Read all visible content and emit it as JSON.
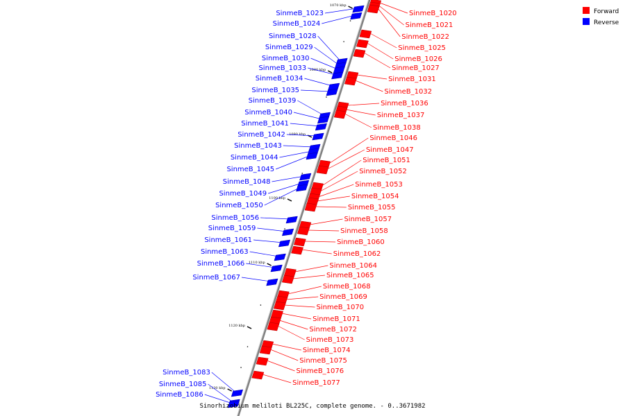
{
  "caption": "Sinorhizobium meliloti BL225C, complete genome. - 0..3671982",
  "legend": [
    {
      "label": "Forward",
      "color": "#ff0000"
    },
    {
      "label": "Reverse",
      "color": "#0000ff"
    }
  ],
  "colors": {
    "forward": "#ff0000",
    "reverse": "#0000ff",
    "backbone": "#808080"
  },
  "ticks": [
    "1070 kbp",
    "1080 kbp",
    "1090 kbp",
    "1100 kbp",
    "1110 kbp",
    "1120 kbp",
    "1130 kbp"
  ],
  "genes_reverse": [
    "SinmeB_1023",
    "SinmeB_1024",
    "SinmeB_1028",
    "SinmeB_1029",
    "SinmeB_1030",
    "SinmeB_1033",
    "SinmeB_1034",
    "SinmeB_1035",
    "SinmeB_1039",
    "SinmeB_1040",
    "SinmeB_1041",
    "SinmeB_1042",
    "SinmeB_1043",
    "SinmeB_1044",
    "SinmeB_1045",
    "SinmeB_1048",
    "SinmeB_1049",
    "SinmeB_1050",
    "SinmeB_1056",
    "SinmeB_1059",
    "SinmeB_1061",
    "SinmeB_1063",
    "SinmeB_1066",
    "SinmeB_1067",
    "SinmeB_1083",
    "SinmeB_1085",
    "SinmeB_1086"
  ],
  "genes_forward": [
    "SinmeB_1020",
    "SinmeB_1021",
    "SinmeB_1022",
    "SinmeB_1025",
    "SinmeB_1026",
    "SinmeB_1027",
    "SinmeB_1031",
    "SinmeB_1032",
    "SinmeB_1036",
    "SinmeB_1037",
    "SinmeB_1038",
    "SinmeB_1046",
    "SinmeB_1047",
    "SinmeB_1051",
    "SinmeB_1052",
    "SinmeB_1053",
    "SinmeB_1054",
    "SinmeB_1055",
    "SinmeB_1057",
    "SinmeB_1058",
    "SinmeB_1060",
    "SinmeB_1062",
    "SinmeB_1064",
    "SinmeB_1065",
    "SinmeB_1068",
    "SinmeB_1069",
    "SinmeB_1070",
    "SinmeB_1071",
    "SinmeB_1072",
    "SinmeB_1073",
    "SinmeB_1074",
    "SinmeB_1075",
    "SinmeB_1076",
    "SinmeB_1077"
  ]
}
